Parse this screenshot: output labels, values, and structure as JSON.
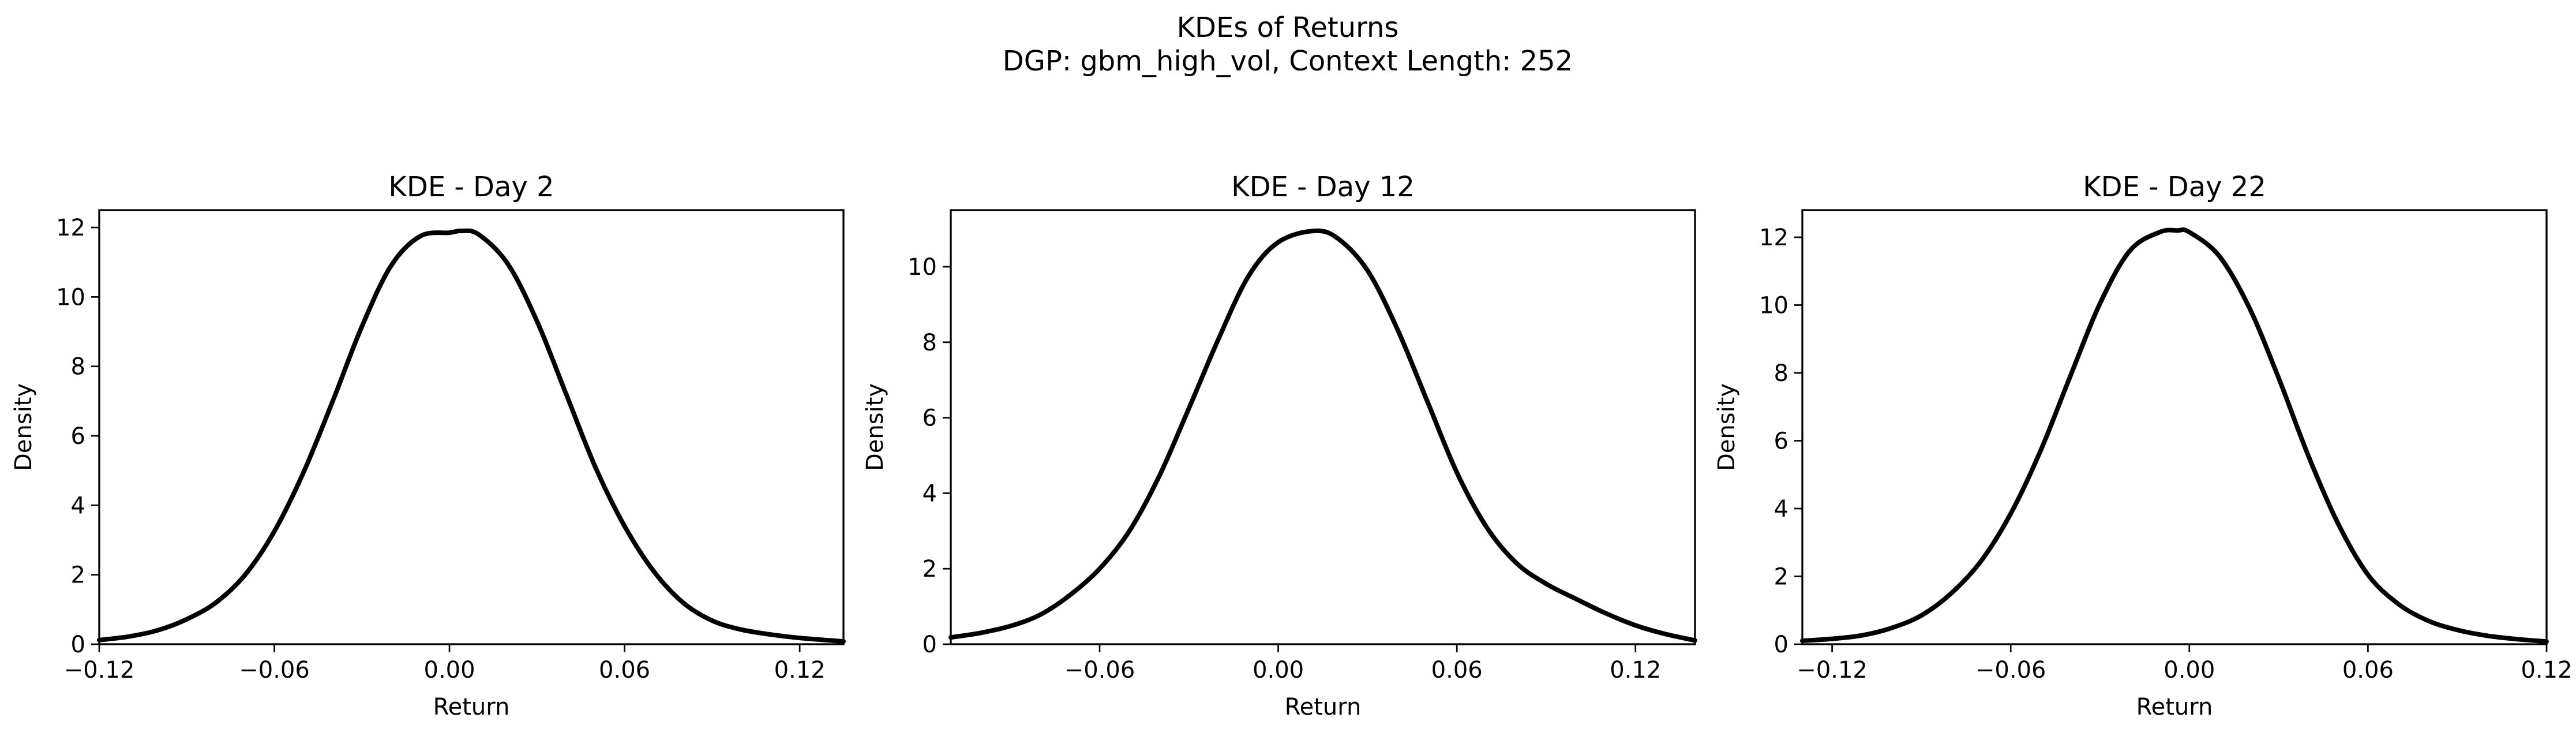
{
  "figure": {
    "title": "KDEs of Returns",
    "subtitle": "DGP: gbm_high_vol, Context Length: 252",
    "background": "#ffffff",
    "line_color": "#000000"
  },
  "chart_data": [
    {
      "type": "line",
      "title": "KDE - Day 2",
      "xlabel": "Return",
      "ylabel": "Density",
      "xlim": [
        -0.12,
        0.135
      ],
      "ylim": [
        0,
        12.5
      ],
      "xticks": [
        -0.12,
        -0.06,
        0.0,
        0.06,
        0.12
      ],
      "xtick_labels": [
        "−0.12",
        "−0.06",
        "0.00",
        "0.06",
        "0.12"
      ],
      "yticks": [
        0,
        2,
        4,
        6,
        8,
        10,
        12
      ],
      "ytick_labels": [
        "0",
        "2",
        "4",
        "6",
        "8",
        "10",
        "12"
      ],
      "grid": false,
      "series": [
        {
          "x": [
            -0.12,
            -0.11,
            -0.1,
            -0.09,
            -0.08,
            -0.07,
            -0.06,
            -0.05,
            -0.04,
            -0.03,
            -0.02,
            -0.01,
            0.0,
            0.004,
            0.01,
            0.02,
            0.03,
            0.04,
            0.05,
            0.06,
            0.07,
            0.08,
            0.09,
            0.1,
            0.11,
            0.12,
            0.135
          ],
          "y": [
            0.12,
            0.22,
            0.4,
            0.72,
            1.2,
            2.0,
            3.25,
            4.95,
            7.0,
            9.15,
            10.9,
            11.75,
            11.85,
            11.9,
            11.8,
            10.95,
            9.3,
            7.2,
            5.1,
            3.4,
            2.1,
            1.2,
            0.68,
            0.42,
            0.28,
            0.18,
            0.08
          ]
        }
      ]
    },
    {
      "type": "line",
      "title": "KDE - Day 12",
      "xlabel": "Return",
      "ylabel": "Density",
      "xlim": [
        -0.11,
        0.14
      ],
      "ylim": [
        0,
        11.5
      ],
      "xticks": [
        -0.06,
        0.0,
        0.06,
        0.12
      ],
      "xtick_labels": [
        "−0.06",
        "0.00",
        "0.06",
        "0.12"
      ],
      "yticks": [
        0,
        2,
        4,
        6,
        8,
        10
      ],
      "ytick_labels": [
        "0",
        "2",
        "4",
        "6",
        "8",
        "10"
      ],
      "grid": false,
      "series": [
        {
          "x": [
            -0.11,
            -0.1,
            -0.09,
            -0.08,
            -0.07,
            -0.06,
            -0.05,
            -0.04,
            -0.03,
            -0.02,
            -0.01,
            0.0,
            0.012,
            0.02,
            0.03,
            0.04,
            0.05,
            0.06,
            0.07,
            0.08,
            0.09,
            0.1,
            0.11,
            0.12,
            0.13,
            0.14
          ],
          "y": [
            0.18,
            0.3,
            0.48,
            0.78,
            1.3,
            2.0,
            3.0,
            4.45,
            6.25,
            8.1,
            9.75,
            10.65,
            10.95,
            10.75,
            9.9,
            8.35,
            6.45,
            4.55,
            3.1,
            2.15,
            1.6,
            1.2,
            0.82,
            0.5,
            0.27,
            0.1
          ]
        }
      ]
    },
    {
      "type": "line",
      "title": "KDE - Day 22",
      "xlabel": "Return",
      "ylabel": "Density",
      "xlim": [
        -0.13,
        0.12
      ],
      "ylim": [
        0,
        12.8
      ],
      "xticks": [
        -0.12,
        -0.06,
        0.0,
        0.06,
        0.12
      ],
      "xtick_labels": [
        "−0.12",
        "−0.06",
        "0.00",
        "0.06",
        "0.12"
      ],
      "yticks": [
        0,
        2,
        4,
        6,
        8,
        10,
        12
      ],
      "ytick_labels": [
        "0",
        "2",
        "4",
        "6",
        "8",
        "10",
        "12"
      ],
      "grid": false,
      "series": [
        {
          "x": [
            -0.13,
            -0.12,
            -0.11,
            -0.1,
            -0.09,
            -0.08,
            -0.07,
            -0.06,
            -0.05,
            -0.04,
            -0.03,
            -0.02,
            -0.01,
            -0.004,
            0.0,
            0.01,
            0.02,
            0.03,
            0.04,
            0.05,
            0.06,
            0.07,
            0.08,
            0.09,
            0.1,
            0.11,
            0.12
          ],
          "y": [
            0.1,
            0.16,
            0.26,
            0.48,
            0.85,
            1.5,
            2.45,
            3.85,
            5.7,
            7.9,
            10.05,
            11.6,
            12.15,
            12.2,
            12.15,
            11.45,
            9.95,
            7.85,
            5.55,
            3.55,
            2.05,
            1.2,
            0.7,
            0.42,
            0.25,
            0.15,
            0.08
          ]
        }
      ]
    }
  ]
}
